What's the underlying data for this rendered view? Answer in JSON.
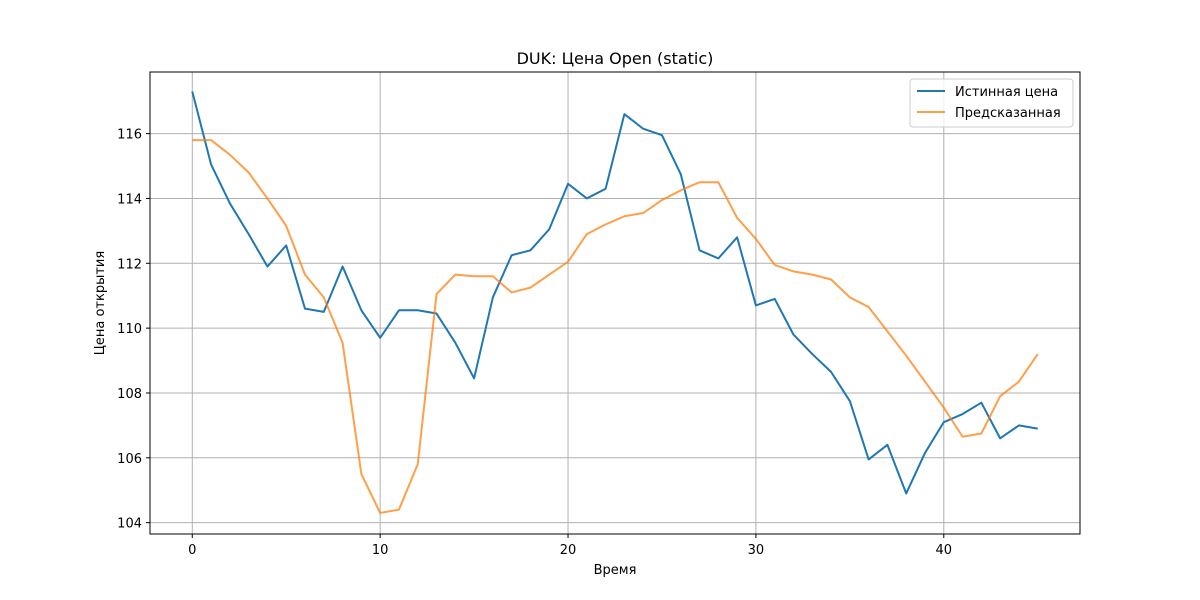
{
  "chart_data": {
    "type": "line",
    "title": "DUK: Цена Open (static)",
    "xlabel": "Время",
    "ylabel": "Цена открытия",
    "xlim": [
      -2.25,
      47.25
    ],
    "ylim": [
      103.65,
      117.9
    ],
    "xticks": [
      0,
      10,
      20,
      30,
      40
    ],
    "yticks": [
      104,
      106,
      108,
      110,
      112,
      114,
      116
    ],
    "grid": true,
    "legend_position": "top-right",
    "x": [
      0,
      1,
      2,
      3,
      4,
      5,
      6,
      7,
      8,
      9,
      10,
      11,
      12,
      13,
      14,
      15,
      16,
      17,
      18,
      19,
      20,
      21,
      22,
      23,
      24,
      25,
      26,
      27,
      28,
      29,
      30,
      31,
      32,
      33,
      34,
      35,
      36,
      37,
      38,
      39,
      40,
      41,
      42,
      43,
      44,
      45
    ],
    "series": [
      {
        "name": "Истинная цена",
        "color": "#1f77b4",
        "values": [
          117.3,
          115.05,
          113.85,
          112.9,
          111.9,
          112.55,
          110.6,
          110.5,
          111.9,
          110.55,
          109.7,
          110.55,
          110.55,
          110.45,
          109.55,
          108.45,
          110.95,
          112.25,
          112.4,
          113.05,
          114.45,
          114.0,
          114.3,
          116.6,
          116.15,
          115.95,
          114.75,
          112.4,
          112.15,
          112.8,
          110.7,
          110.9,
          109.8,
          109.2,
          108.65,
          107.75,
          105.95,
          106.4,
          104.9,
          106.15,
          107.1,
          107.35,
          107.7,
          106.6,
          107.0,
          106.9
        ]
      },
      {
        "name": "Предсказанная",
        "color": "#ff7f0e",
        "values": [
          115.8,
          115.8,
          115.35,
          114.8,
          114.0,
          113.15,
          111.65,
          110.95,
          109.55,
          105.5,
          104.3,
          104.4,
          105.8,
          111.05,
          111.65,
          111.6,
          111.6,
          111.1,
          111.25,
          111.65,
          112.05,
          112.9,
          113.2,
          113.45,
          113.55,
          113.95,
          114.25,
          114.5,
          114.5,
          113.4,
          112.75,
          111.95,
          111.75,
          111.65,
          111.5,
          110.95,
          110.65,
          109.9,
          109.15,
          108.35,
          107.55,
          106.65,
          106.75,
          107.9,
          108.35,
          109.2
        ]
      }
    ]
  }
}
